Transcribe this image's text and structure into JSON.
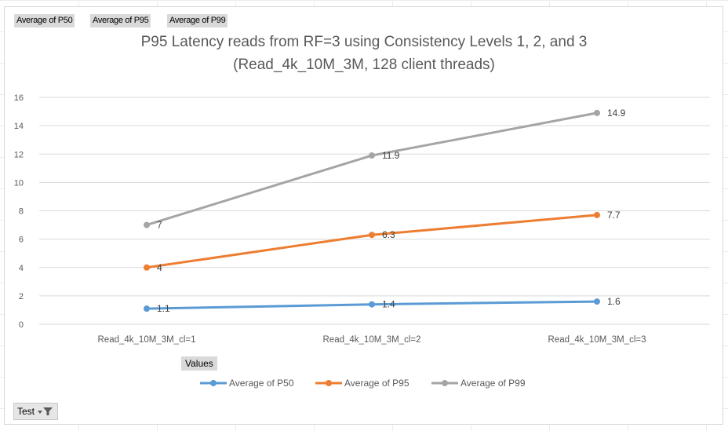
{
  "field_buttons": [
    "Average of P50",
    "Average of P95",
    "Average of P99"
  ],
  "values_button": "Values",
  "filter_button": "Test",
  "colors": {
    "p50": "#5b9bd5",
    "p95": "#ed7d31",
    "p99": "#a5a5a5",
    "grid": "#d9d9d9",
    "text": "#595959"
  },
  "chart_data": {
    "type": "line",
    "title_line1": "P95 Latency reads from RF=3 using Consistency Levels 1, 2, and 3",
    "title_line2": "(Read_4k_10M_3M, 128 client threads)",
    "categories": [
      "Read_4k_10M_3M_cl=1",
      "Read_4k_10M_3M_cl=2",
      "Read_4k_10M_3M_cl=3"
    ],
    "series": [
      {
        "name": "Average of P50",
        "values": [
          1.1,
          1.4,
          1.6
        ],
        "labels": [
          "1.1",
          "1.4",
          "1.6"
        ],
        "color": "#5b9bd5"
      },
      {
        "name": "Average of P95",
        "values": [
          4,
          6.3,
          7.7
        ],
        "labels": [
          "4",
          "6.3",
          "7.7"
        ],
        "color": "#ed7d31"
      },
      {
        "name": "Average of P99",
        "values": [
          7,
          11.9,
          14.9
        ],
        "labels": [
          "7",
          "11.9",
          "14.9"
        ],
        "color": "#a5a5a5"
      }
    ],
    "ylim": [
      0,
      16
    ],
    "yticks": [
      "0",
      "2",
      "4",
      "6",
      "8",
      "10",
      "12",
      "14",
      "16"
    ],
    "grid": true,
    "legend_position": "bottom"
  }
}
